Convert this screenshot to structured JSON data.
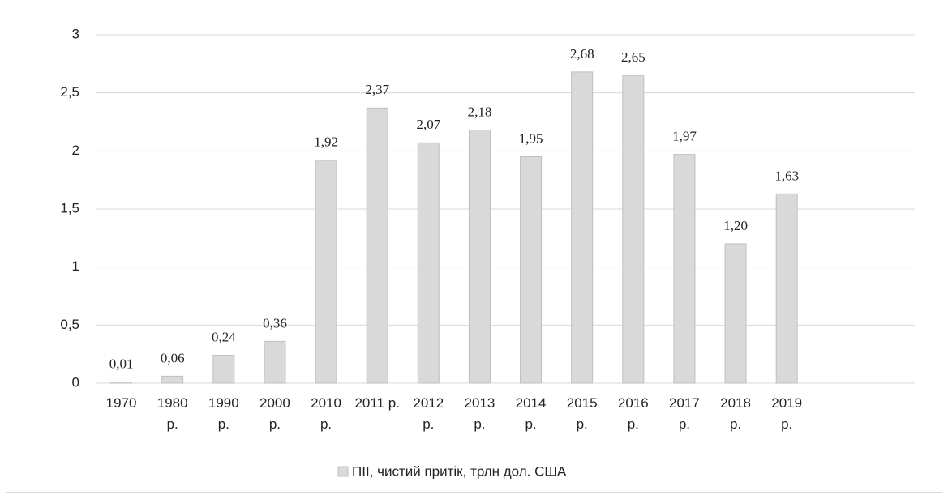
{
  "chart_data": {
    "type": "bar",
    "categories": [
      "1970",
      "1980 р.",
      "1990 р.",
      "2000 р.",
      "2010 р.",
      "2011 р.",
      "2012 р.",
      "2013 р.",
      "2014 р.",
      "2015 р.",
      "2016 р.",
      "2017 р.",
      "2018 р.",
      "2019 р.",
      null,
      null
    ],
    "values": [
      0.01,
      0.06,
      0.24,
      0.36,
      1.92,
      2.37,
      2.07,
      2.18,
      1.95,
      2.68,
      2.65,
      1.97,
      1.2,
      1.63,
      null,
      null
    ],
    "value_labels": [
      "0,01",
      "0,06",
      "0,24",
      "0,36",
      "1,92",
      "2,37",
      "2,07",
      "2,18",
      "1,95",
      "2,68",
      "2,65",
      "1,97",
      "1,20",
      "1,63",
      null,
      null
    ],
    "series_name": "ПІІ, чистий притік, трлн дол. США",
    "color": "#d9d9d9",
    "edge_color": "#bfbfbf",
    "ylim": [
      0,
      3
    ],
    "yticks": [
      0,
      {
        "value": 0.5,
        "label": "0,5"
      },
      1,
      {
        "value": 1.5,
        "label": "1,5"
      },
      2,
      {
        "value": 2.5,
        "label": "2,5"
      },
      3
    ],
    "grid": true,
    "legend": "bottom"
  }
}
